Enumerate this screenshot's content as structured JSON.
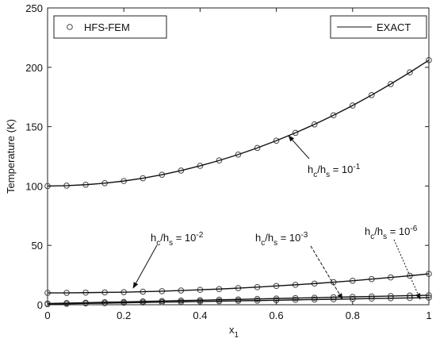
{
  "chart_data": {
    "type": "line",
    "xlabel": [
      "x",
      "1"
    ],
    "ylabel": "Temperature (K)",
    "x": [
      0,
      0.05,
      0.1,
      0.15,
      0.2,
      0.25,
      0.3,
      0.35,
      0.4,
      0.45,
      0.5,
      0.55,
      0.6,
      0.65,
      0.7,
      0.75,
      0.8,
      0.85,
      0.9,
      0.95,
      1
    ],
    "xlim": [
      0,
      1
    ],
    "xticks": [
      0,
      0.2,
      0.4,
      0.6,
      0.8,
      1
    ],
    "ylim": [
      0,
      250
    ],
    "yticks": [
      0,
      50,
      100,
      150,
      200,
      250
    ],
    "grid": false,
    "series": [
      {
        "name": "HFS-FEM",
        "color": "#444444",
        "marker": "circle",
        "curves": [
          [
            100,
            100.3,
            101.1,
            102.4,
            104.2,
            106.6,
            109.5,
            113,
            117,
            121.5,
            126.5,
            132.1,
            138.2,
            144.8,
            151.9,
            159.6,
            167.8,
            176.6,
            185.9,
            195.7,
            206
          ],
          [
            10,
            10,
            10.2,
            10.4,
            10.6,
            11,
            11.4,
            12,
            12.6,
            13.2,
            14,
            14.8,
            15.8,
            16.8,
            17.8,
            19,
            20.2,
            21.6,
            23,
            24.4,
            26
          ],
          [
            1,
            1.4,
            1.7,
            2.1,
            2.4,
            2.8,
            3.1,
            3.5,
            3.8,
            4.2,
            4.5,
            4.9,
            5.2,
            5.6,
            5.9,
            6.3,
            6.6,
            7,
            7.3,
            7.7,
            8
          ],
          [
            0.5,
            0.8,
            1.1,
            1.3,
            1.6,
            1.9,
            2.2,
            2.4,
            2.7,
            3,
            3.3,
            3.5,
            3.8,
            4.1,
            4.4,
            4.6,
            4.9,
            5.2,
            5.5,
            5.7,
            6
          ]
        ]
      },
      {
        "name": "EXACT",
        "color": "#111111",
        "marker": "none",
        "curves": [
          [
            100,
            100.3,
            101.1,
            102.4,
            104.2,
            106.6,
            109.5,
            113,
            117,
            121.5,
            126.5,
            132.1,
            138.2,
            144.8,
            151.9,
            159.6,
            167.8,
            176.6,
            185.9,
            195.7,
            206
          ],
          [
            10,
            10,
            10.2,
            10.4,
            10.6,
            11,
            11.4,
            12,
            12.6,
            13.2,
            14,
            14.8,
            15.8,
            16.8,
            17.8,
            19,
            20.2,
            21.6,
            23,
            24.4,
            26
          ],
          [
            1,
            1.4,
            1.7,
            2.1,
            2.4,
            2.8,
            3.1,
            3.5,
            3.8,
            4.2,
            4.5,
            4.9,
            5.2,
            5.6,
            5.9,
            6.3,
            6.6,
            7,
            7.3,
            7.7,
            8
          ],
          [
            0.5,
            0.8,
            1.1,
            1.3,
            1.6,
            1.9,
            2.2,
            2.4,
            2.7,
            3,
            3.3,
            3.5,
            3.8,
            4.1,
            4.4,
            4.6,
            4.9,
            5.2,
            5.5,
            5.7,
            6
          ]
        ]
      }
    ],
    "annotations": [
      {
        "text": [
          "h",
          "c",
          "/h",
          "s",
          " = 10",
          "-1"
        ]
      },
      {
        "text": [
          "h",
          "c",
          "/h",
          "s",
          " = 10",
          "-2"
        ]
      },
      {
        "text": [
          "h",
          "c",
          "/h",
          "s",
          " = 10",
          "-3"
        ]
      },
      {
        "text": [
          "h",
          "c",
          "/h",
          "s",
          " = 10",
          "-6"
        ]
      }
    ]
  }
}
